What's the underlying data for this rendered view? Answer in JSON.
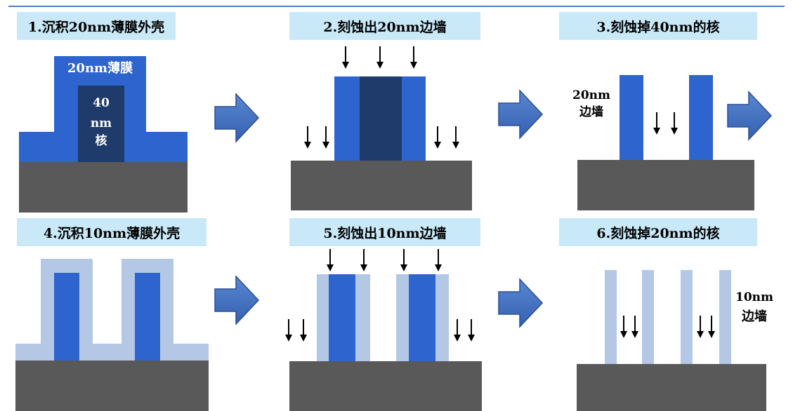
{
  "steps": [
    {
      "title": "1.沉积20nm薄膜外壳",
      "film_label": "20nm薄膜",
      "core_label": [
        "40",
        "nm",
        "核"
      ]
    },
    {
      "title": "2.刻蚀出20nm边墙"
    },
    {
      "title": "3.刻蚀掉40nm的核",
      "spacer_label": [
        "20nm",
        "边墙"
      ]
    },
    {
      "title": "4.沉积10nm薄膜外壳"
    },
    {
      "title": "5.刻蚀出10nm边墙"
    },
    {
      "title": "6.刻蚀掉20nm的核",
      "spacer_label": [
        "10nm",
        "边墙"
      ]
    }
  ],
  "colors": {
    "substrate": "#595959",
    "spacer_blue": "#2e64cd",
    "core_navy": "#1f3b6b",
    "film_light": "#b4c8e6",
    "title_bg": "#c9e9f8",
    "arrow_fill": "#3f6fc0"
  },
  "icons": {
    "process_arrow": "right-block-arrow-icon",
    "etch_arrow": "down-arrow-icon"
  }
}
